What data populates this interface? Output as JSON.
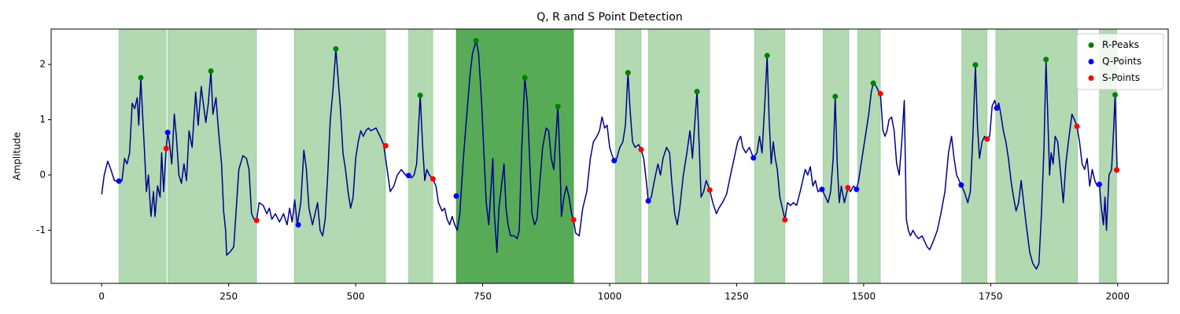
{
  "chart_data": {
    "type": "line",
    "title": "Q, R and S Point Detection",
    "y_label": "Amplitude",
    "xlim": [
      -99.5,
      2099.5
    ],
    "ylim": [
      -1.96,
      2.64
    ],
    "xticks": [
      0,
      250,
      500,
      750,
      1000,
      1250,
      1500,
      1750,
      2000
    ],
    "yticks": [
      -1,
      0,
      1,
      2
    ],
    "legend_position": "upper right",
    "shaded_regions": [
      {
        "start": 34,
        "end": 127,
        "color": "#008000",
        "alpha": 0.3
      },
      {
        "start": 130,
        "end": 305,
        "color": "#008000",
        "alpha": 0.3
      },
      {
        "start": 379,
        "end": 559,
        "color": "#008000",
        "alpha": 0.3
      },
      {
        "start": 604,
        "end": 652,
        "color": "#008000",
        "alpha": 0.3
      },
      {
        "start": 698,
        "end": 929,
        "color": "#008000",
        "alpha": 0.66
      },
      {
        "start": 1011,
        "end": 1062,
        "color": "#008000",
        "alpha": 0.3
      },
      {
        "start": 1076,
        "end": 1197,
        "color": "#008000",
        "alpha": 0.3
      },
      {
        "start": 1285,
        "end": 1345,
        "color": "#008000",
        "alpha": 0.3
      },
      {
        "start": 1420,
        "end": 1471,
        "color": "#008000",
        "alpha": 0.3
      },
      {
        "start": 1488,
        "end": 1533,
        "color": "#008000",
        "alpha": 0.3
      },
      {
        "start": 1693,
        "end": 1743,
        "color": "#008000",
        "alpha": 0.3
      },
      {
        "start": 1760,
        "end": 1921,
        "color": "#008000",
        "alpha": 0.3
      },
      {
        "start": 1964,
        "end": 1998,
        "color": "#008000",
        "alpha": 0.3
      }
    ],
    "series": [
      {
        "type": "line",
        "color": "#00008b",
        "x": [
          0,
          5,
          12,
          18,
          25,
          34,
          40,
          45,
          50,
          55,
          60,
          65,
          70,
          73,
          77,
          80,
          85,
          88,
          92,
          97,
          102,
          105,
          110,
          115,
          118,
          122,
          127,
          130,
          133,
          138,
          143,
          147,
          152,
          157,
          162,
          167,
          172,
          178,
          185,
          190,
          196,
          200,
          205,
          210,
          215,
          219,
          225,
          230,
          236,
          240,
          244,
          246,
          252,
          260,
          265,
          270,
          278,
          285,
          290,
          295,
          300,
          305,
          310,
          318,
          325,
          330,
          335,
          342,
          350,
          358,
          365,
          370,
          375,
          380,
          385,
          392,
          398,
          403,
          408,
          415,
          420,
          425,
          430,
          435,
          440,
          445,
          450,
          455,
          461,
          465,
          470,
          475,
          480,
          485,
          490,
          495,
          500,
          505,
          510,
          515,
          520,
          525,
          530,
          540,
          548,
          555,
          562,
          568,
          575,
          582,
          590,
          598,
          604,
          610,
          615,
          620,
          627,
          632,
          636,
          640,
          645,
          652,
          658,
          663,
          670,
          675,
          680,
          685,
          690,
          695,
          700,
          705,
          712,
          718,
          725,
          730,
          737,
          742,
          748,
          752,
          757,
          762,
          766,
          770,
          773,
          778,
          782,
          787,
          792,
          796,
          800,
          805,
          812,
          818,
          822,
          827,
          833,
          838,
          842,
          847,
          852,
          857,
          862,
          868,
          875,
          880,
          885,
          890,
          895,
          898,
          902,
          905,
          910,
          915,
          920,
          925,
          929,
          933,
          940,
          947,
          955,
          962,
          968,
          975,
          980,
          985,
          990,
          995,
          1000,
          1005,
          1009,
          1014,
          1020,
          1026,
          1031,
          1036,
          1040,
          1045,
          1050,
          1057,
          1062,
          1067,
          1072,
          1076,
          1082,
          1088,
          1095,
          1100,
          1105,
          1112,
          1118,
          1122,
          1128,
          1133,
          1138,
          1145,
          1152,
          1158,
          1163,
          1168,
          1172,
          1176,
          1180,
          1185,
          1190,
          1197,
          1203,
          1210,
          1215,
          1222,
          1230,
          1238,
          1245,
          1252,
          1258,
          1262,
          1268,
          1275,
          1283,
          1290,
          1295,
          1300,
          1306,
          1310,
          1314,
          1318,
          1322,
          1326,
          1330,
          1335,
          1340,
          1345,
          1350,
          1356,
          1362,
          1368,
          1375,
          1380,
          1385,
          1390,
          1395,
          1400,
          1405,
          1410,
          1418,
          1425,
          1430,
          1435,
          1440,
          1444,
          1448,
          1452,
          1456,
          1462,
          1469,
          1474,
          1480,
          1486,
          1490,
          1495,
          1500,
          1505,
          1510,
          1515,
          1519,
          1525,
          1530,
          1533,
          1538,
          1542,
          1546,
          1550,
          1555,
          1560,
          1565,
          1570,
          1575,
          1580,
          1584,
          1588,
          1592,
          1597,
          1603,
          1608,
          1615,
          1620,
          1625,
          1630,
          1637,
          1645,
          1652,
          1660,
          1667,
          1673,
          1678,
          1683,
          1688,
          1692,
          1698,
          1705,
          1710,
          1715,
          1720,
          1724,
          1728,
          1733,
          1738,
          1743,
          1748,
          1753,
          1758,
          1762,
          1766,
          1770,
          1775,
          1780,
          1785,
          1790,
          1795,
          1800,
          1805,
          1810,
          1815,
          1820,
          1827,
          1833,
          1840,
          1845,
          1850,
          1855,
          1859,
          1863,
          1866,
          1869,
          1873,
          1877,
          1882,
          1888,
          1893,
          1898,
          1903,
          1910,
          1915,
          1920,
          1925,
          1930,
          1935,
          1940,
          1945,
          1950,
          1955,
          1960,
          1964,
          1968,
          1972,
          1975,
          1978,
          1983,
          1988,
          1992,
          1995,
          1999
        ],
        "values": [
          -0.35,
          0,
          0.25,
          0.1,
          -0.1,
          -0.12,
          -0.1,
          0.3,
          0.2,
          0.4,
          1.3,
          1.2,
          1.4,
          0.9,
          1.76,
          1.2,
          0.3,
          -0.3,
          0,
          -0.75,
          -0.3,
          -0.75,
          -0.2,
          -0.4,
          0.4,
          -0.3,
          0.48,
          0.77,
          0.6,
          0.2,
          1.1,
          0.7,
          0,
          -0.15,
          0.2,
          -0.1,
          0.8,
          0.5,
          1.5,
          0.9,
          1.6,
          1.3,
          0.95,
          1.3,
          1.88,
          1.1,
          1.4,
          0.8,
          0.2,
          -0.65,
          -1,
          -1.45,
          -1.4,
          -1.3,
          -0.6,
          0.1,
          0.35,
          0.3,
          0.1,
          -0.7,
          -0.8,
          -0.82,
          -0.5,
          -0.55,
          -0.7,
          -0.6,
          -0.8,
          -0.7,
          -0.85,
          -0.7,
          -0.9,
          -0.6,
          -0.85,
          -0.45,
          -0.9,
          -0.5,
          0.45,
          0.1,
          -0.6,
          -0.9,
          -0.7,
          -0.5,
          -1,
          -1.1,
          -0.8,
          0,
          1,
          1.5,
          2.28,
          1.8,
          1.2,
          0.4,
          0.1,
          -0.3,
          -0.6,
          -0.4,
          0.3,
          0.6,
          0.8,
          0.7,
          0.8,
          0.85,
          0.8,
          0.85,
          0.7,
          0.55,
          0.1,
          -0.3,
          -0.2,
          0,
          0.1,
          0,
          -0.01,
          -0.05,
          0,
          0.2,
          1.44,
          0.5,
          -0.1,
          0.1,
          0,
          -0.07,
          -0.2,
          -0.5,
          -0.65,
          -0.6,
          -0.8,
          -0.9,
          -0.75,
          -0.9,
          -1,
          -0.7,
          0.3,
          1,
          1.8,
          2.2,
          2.43,
          2.2,
          1.3,
          0.5,
          -0.5,
          -0.9,
          -0.3,
          0.3,
          -0.7,
          -1.4,
          -0.6,
          -0.2,
          0.2,
          -0.6,
          -0.9,
          -1.1,
          -1.1,
          -1.15,
          -1,
          0.5,
          1.76,
          1.3,
          0.4,
          -0.7,
          -0.9,
          -0.8,
          -0.2,
          0.5,
          0.85,
          0.8,
          0.3,
          0.1,
          0.8,
          1.24,
          0.3,
          -0.75,
          -0.4,
          -0.2,
          -0.4,
          -0.7,
          -0.81,
          -1.05,
          -1.1,
          -0.6,
          -0.3,
          0.3,
          0.6,
          0.7,
          0.8,
          1.05,
          0.85,
          0.9,
          0.5,
          0.35,
          0.26,
          0.3,
          0.5,
          0.6,
          0.9,
          1.85,
          1.2,
          0.6,
          0.5,
          0.55,
          0.46,
          0.3,
          -0.1,
          -0.47,
          -0.4,
          -0.1,
          0.2,
          0,
          0.3,
          0.5,
          0.4,
          -0.1,
          -0.7,
          -0.9,
          -0.6,
          0,
          0.4,
          0.8,
          0.3,
          1,
          1.51,
          0.6,
          -0.4,
          -0.3,
          -0.1,
          -0.27,
          -0.5,
          -0.7,
          -0.6,
          -0.5,
          -0.35,
          0,
          0.3,
          0.6,
          0.7,
          0.5,
          0.4,
          0.5,
          0.31,
          0.4,
          0.7,
          0.4,
          1.4,
          2.16,
          1,
          0.2,
          0.6,
          0.3,
          0.1,
          -0.4,
          -0.6,
          -0.81,
          -0.5,
          -0.55,
          -0.5,
          -0.55,
          -0.3,
          -0.1,
          0.1,
          0,
          0.15,
          -0.2,
          -0.1,
          -0.3,
          -0.26,
          -0.4,
          -0.5,
          -0.3,
          0.3,
          1.42,
          0.2,
          -0.5,
          -0.2,
          -0.5,
          -0.23,
          -0.3,
          -0.2,
          -0.26,
          -0.1,
          0.2,
          0.5,
          0.8,
          1.1,
          1.5,
          1.66,
          1.6,
          1.5,
          1.47,
          0.8,
          0.7,
          0.8,
          1,
          1.05,
          0.8,
          0.2,
          0,
          0.6,
          1.35,
          -0.8,
          -1,
          -1.1,
          -1,
          -1.1,
          -1.15,
          -1.1,
          -1.2,
          -1.3,
          -1.35,
          -1.2,
          -1,
          -0.7,
          -0.3,
          0.4,
          0.7,
          0.3,
          0,
          -0.1,
          -0.18,
          -0.3,
          -0.5,
          -0.3,
          0.7,
          1.99,
          0.9,
          0.3,
          0.6,
          0.7,
          0.65,
          0.7,
          1.25,
          1.35,
          1.21,
          1.3,
          1.1,
          0.8,
          0.6,
          0.3,
          -0.1,
          -0.4,
          -0.65,
          -0.5,
          -0.1,
          -0.5,
          -0.9,
          -1.4,
          -1.6,
          -1.7,
          -1.6,
          -0.7,
          0.5,
          2.09,
          0.9,
          0,
          0.4,
          0.2,
          0.7,
          0.6,
          0,
          -0.5,
          0.2,
          0.6,
          1.1,
          1,
          0.88,
          0.6,
          0.2,
          0.1,
          0.3,
          -0.2,
          0.1,
          -0.1,
          -0.2,
          -0.17,
          -0.6,
          -0.9,
          -0.4,
          -1,
          0,
          0.1,
          0.8,
          1.45,
          0.09
        ]
      },
      {
        "type": "scatter",
        "name": "R-Peaks",
        "color": "#008000",
        "x": [
          77,
          215,
          461,
          627,
          737,
          833,
          898,
          1036,
          1172,
          1310,
          1444,
          1519,
          1720,
          1859,
          1995
        ],
        "values": [
          1.76,
          1.88,
          2.28,
          1.44,
          2.43,
          1.76,
          1.24,
          1.85,
          1.51,
          2.16,
          1.42,
          1.66,
          1.99,
          2.09,
          1.45
        ]
      },
      {
        "type": "scatter",
        "name": "Q-Points",
        "color": "#0000ff",
        "x": [
          34,
          130,
          387,
          604,
          698,
          1009,
          1076,
          1283,
          1418,
          1486,
          1692,
          1762,
          1964
        ],
        "values": [
          -0.11,
          0.77,
          -0.9,
          -0.01,
          -0.38,
          0.26,
          -0.47,
          0.31,
          -0.26,
          -0.26,
          -0.18,
          1.21,
          -0.17
        ]
      },
      {
        "type": "scatter",
        "name": "S-Points",
        "color": "#ff0000",
        "x": [
          127,
          305,
          559,
          652,
          929,
          1062,
          1197,
          1345,
          1469,
          1533,
          1743,
          1920,
          1998
        ],
        "values": [
          0.48,
          -0.82,
          0.53,
          -0.07,
          -0.81,
          0.46,
          -0.27,
          -0.81,
          -0.23,
          1.47,
          0.65,
          0.88,
          0.09
        ]
      }
    ]
  }
}
